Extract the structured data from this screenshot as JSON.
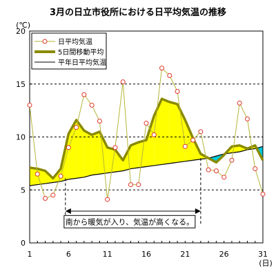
{
  "chart_data": {
    "type": "line",
    "title": "3月の日立市役所における日平均気温の推移",
    "ylabel": "(℃)",
    "xlabel": "(日)",
    "x": [
      1,
      2,
      3,
      4,
      5,
      6,
      7,
      8,
      9,
      10,
      11,
      12,
      13,
      14,
      15,
      16,
      17,
      18,
      19,
      20,
      21,
      22,
      23,
      24,
      25,
      26,
      27,
      28,
      29,
      30,
      31
    ],
    "xlim": [
      1,
      31
    ],
    "ylim": [
      0,
      20
    ],
    "xticks": [
      1,
      6,
      11,
      16,
      21,
      26,
      31
    ],
    "yticks": [
      0,
      5,
      10,
      15,
      20
    ],
    "grid": "dashed horizontal at 5, 10, 15",
    "legend_position": "top-left",
    "series": [
      {
        "name": "日平均気温",
        "style": "line-with-circle-markers",
        "color": "#b5b53a",
        "marker_color": "#e0342a",
        "values": [
          13.0,
          6.5,
          4.2,
          4.5,
          6.3,
          9.0,
          10.9,
          14.0,
          13.0,
          11.5,
          4.1,
          9.0,
          15.2,
          5.5,
          5.5,
          11.3,
          10.2,
          16.5,
          15.8,
          14.3,
          9.1,
          9.7,
          10.5,
          6.9,
          6.8,
          6.2,
          7.8,
          13.2,
          11.7,
          7.0,
          4.6
        ]
      },
      {
        "name": "5日間移動平均",
        "style": "thick-line",
        "color": "#8a8a00",
        "values": [
          7.1,
          7.0,
          6.8,
          6.1,
          7.0,
          10.3,
          11.6,
          10.6,
          10.2,
          10.5,
          9.0,
          8.8,
          7.8,
          9.2,
          9.5,
          9.7,
          12.0,
          13.6,
          13.3,
          13.1,
          11.6,
          9.9,
          8.4,
          8.0,
          7.6,
          8.3,
          9.1,
          9.2,
          8.9,
          9.2,
          7.8
        ]
      },
      {
        "name": "平年日平均気温",
        "style": "thin-line",
        "color": "#000000",
        "values": [
          5.4,
          5.5,
          5.6,
          5.7,
          5.8,
          6.0,
          6.1,
          6.2,
          6.4,
          6.5,
          6.6,
          6.7,
          6.8,
          7.0,
          7.1,
          7.2,
          7.3,
          7.4,
          7.5,
          7.6,
          7.7,
          7.8,
          7.9,
          8.0,
          8.2,
          8.4,
          8.5,
          8.6,
          8.8,
          8.9,
          9.1
        ]
      }
    ],
    "fill_colors": {
      "above_normal": "#ffff00",
      "below_normal": "#00c8d8"
    },
    "annotation": {
      "text": "南から暖気が入り、気温が高くなる。",
      "x_range": [
        5.6,
        23
      ],
      "y": 2.0
    }
  }
}
